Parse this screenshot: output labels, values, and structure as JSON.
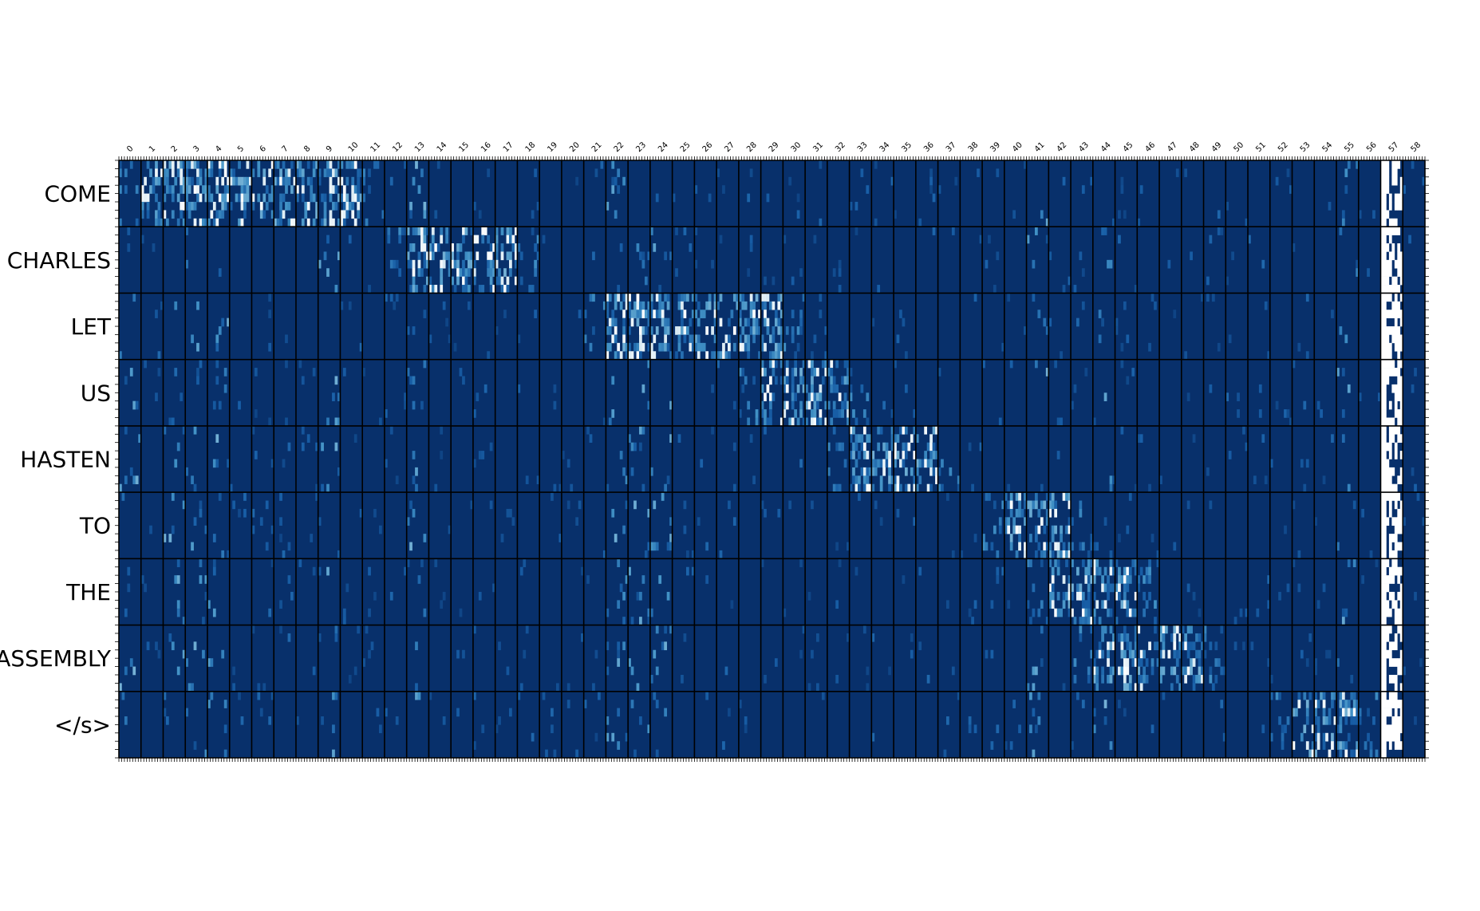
{
  "chart_data": {
    "type": "heatmap",
    "title": "",
    "xlabel": "",
    "ylabel": "",
    "colormap": "Blues_r",
    "colors": {
      "low": "#08306b",
      "mid": "#2f7dc0",
      "high": "#ffffff",
      "grid": "#000000"
    },
    "rows": [
      "COME",
      "CHARLES",
      "LET",
      "US",
      "HASTEN",
      "TO",
      "THE",
      "ASSEMBLY",
      "</s>"
    ],
    "columns": [
      "0",
      "1",
      "2",
      "3",
      "4",
      "5",
      "6",
      "7",
      "8",
      "9",
      "10",
      "11",
      "12",
      "13",
      "14",
      "15",
      "16",
      "17",
      "18",
      "19",
      "20",
      "21",
      "22",
      "23",
      "24",
      "25",
      "26",
      "27",
      "28",
      "29",
      "30",
      "31",
      "32",
      "33",
      "34",
      "35",
      "36",
      "37",
      "38",
      "39",
      "40",
      "41",
      "42",
      "43",
      "44",
      "45",
      "46",
      "47",
      "48",
      "49",
      "50",
      "51",
      "52",
      "53",
      "54",
      "55",
      "56",
      "57",
      "58"
    ],
    "sub_rows_per_row": 8,
    "sub_cols_per_col": 8,
    "alignment_band": [
      {
        "row": "COME",
        "cols": [
          1,
          10
        ]
      },
      {
        "row": "CHARLES",
        "cols": [
          13,
          17
        ]
      },
      {
        "row": "LET",
        "cols": [
          22,
          29
        ]
      },
      {
        "row": "US",
        "cols": [
          29,
          32
        ]
      },
      {
        "row": "HASTEN",
        "cols": [
          33,
          36
        ]
      },
      {
        "row": "TO",
        "cols": [
          40,
          42
        ]
      },
      {
        "row": "THE",
        "cols": [
          42,
          45
        ]
      },
      {
        "row": "ASSEMBLY",
        "cols": [
          44,
          48
        ]
      },
      {
        "row": "</s>",
        "cols": [
          53,
          55
        ]
      }
    ],
    "saturated_column": 57,
    "value_range": [
      0,
      1
    ]
  }
}
